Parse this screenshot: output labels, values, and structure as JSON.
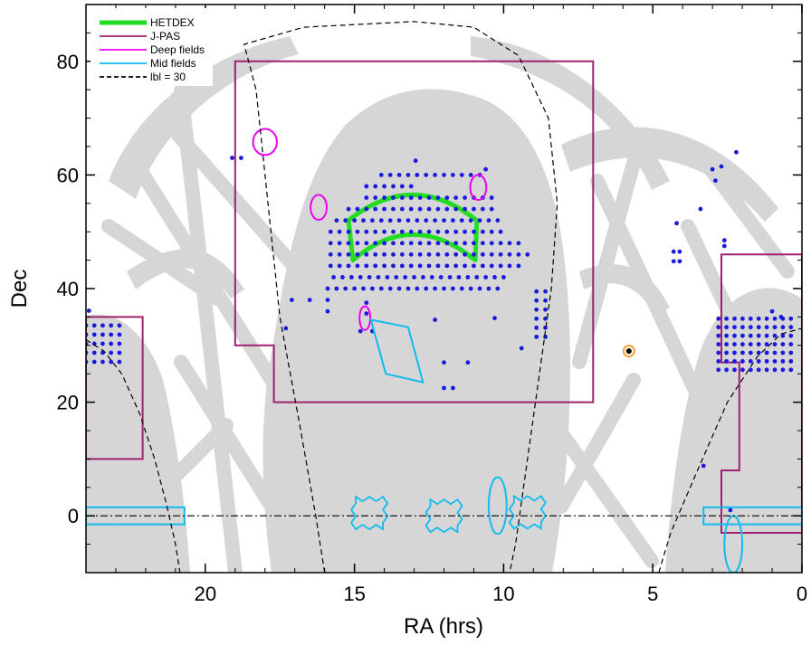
{
  "chart_data": {
    "type": "scatter",
    "xlabel": "RA (hrs)",
    "ylabel": "Dec",
    "xlim": [
      24,
      0
    ],
    "ylim": [
      -10,
      90
    ],
    "x_ticks": [
      20,
      15,
      10,
      5,
      0
    ],
    "y_ticks": [
      0,
      20,
      40,
      60,
      80
    ],
    "grid": false,
    "legend_position": "top-left",
    "legend": [
      {
        "label": "HETDEX",
        "color": "#22dd22",
        "style": "thick-solid"
      },
      {
        "label": "J-PAS",
        "color": "#a0206e",
        "style": "solid"
      },
      {
        "label": "Deep fields",
        "color": "#ee00ee",
        "style": "solid"
      },
      {
        "label": "Mid fields",
        "color": "#11bbee",
        "style": "solid"
      },
      {
        "label": "lbl = 30",
        "color": "#000000",
        "style": "dashed"
      }
    ],
    "colors": {
      "background_mask": "#d6d6d6",
      "hetdex": "#22dd22",
      "jpas": "#a0206e",
      "deep": "#ee00ee",
      "mid": "#11bbee",
      "points": "#1a1adc",
      "galactic": "#000000"
    },
    "jpas_regions": [
      [
        [
          19,
          80
        ],
        [
          7,
          80
        ],
        [
          7,
          20
        ],
        [
          17.7,
          20
        ],
        [
          17.7,
          30
        ],
        [
          19,
          30
        ]
      ],
      [
        [
          24,
          35
        ],
        [
          22.1,
          35
        ],
        [
          22.1,
          10
        ],
        [
          24,
          10
        ]
      ],
      [
        [
          0,
          46
        ],
        [
          2.7,
          46
        ],
        [
          2.7,
          27
        ],
        [
          2.1,
          27
        ],
        [
          2.1,
          8
        ],
        [
          2.7,
          8
        ],
        [
          2.7,
          -3
        ],
        [
          0,
          -3
        ]
      ]
    ],
    "hetdex_region": {
      "ra_min": 10.9,
      "ra_max": 15.2,
      "dec_min": 45,
      "dec_max": 52,
      "arc_top": 56.5,
      "arc_bottom": 49.5
    },
    "deep_fields": [
      {
        "ra": 18.0,
        "dec": 65.8,
        "rx": 0.4,
        "ry": 2.3
      },
      {
        "ra": 16.2,
        "dec": 54.3,
        "rx": 0.27,
        "ry": 2.2
      },
      {
        "ra": 10.85,
        "dec": 57.8,
        "rx": 0.27,
        "ry": 2.2
      },
      {
        "ra": 14.65,
        "dec": 34.8,
        "rx": 0.18,
        "ry": 2.1
      }
    ],
    "mid_fields_boxes": [
      [
        [
          24,
          1.5
        ],
        [
          20.7,
          1.5
        ],
        [
          20.7,
          -1.5
        ],
        [
          24,
          -1.5
        ]
      ],
      [
        [
          0,
          1.5
        ],
        [
          3.3,
          1.5
        ],
        [
          3.3,
          -1.5
        ],
        [
          0,
          -1.5
        ]
      ]
    ],
    "mid_fields_polygon": [
      [
        14.45,
        34.5
      ],
      [
        13.2,
        33.2
      ],
      [
        12.7,
        23.5
      ],
      [
        13.95,
        25.0
      ]
    ],
    "mid_fields_jagged": [
      {
        "ra": 14.5,
        "dec": 0.5
      },
      {
        "ra": 12.0,
        "dec": 0.0
      },
      {
        "ra": 9.2,
        "dec": 0.6
      }
    ],
    "mid_fields_ellipses": [
      {
        "ra": 10.2,
        "dec": 1.8,
        "rx": 0.3,
        "ry": 5.0
      },
      {
        "ra": 2.3,
        "dec": -5.0,
        "rx": 0.3,
        "ry": 5.0
      }
    ],
    "special_marker": {
      "ra": 5.8,
      "dec": 29.0,
      "color": "#f0a030"
    },
    "scatter_points": [],
    "galactic_curves": [
      [
        [
          24,
          31
        ],
        [
          23.4,
          29
        ],
        [
          22.8,
          25
        ],
        [
          22.2,
          18
        ],
        [
          21.7,
          10
        ],
        [
          21.3,
          2
        ],
        [
          21.0,
          -5
        ],
        [
          20.85,
          -10
        ]
      ],
      [
        [
          16.0,
          -10
        ],
        [
          16.3,
          0
        ],
        [
          16.8,
          15
        ],
        [
          17.5,
          35
        ],
        [
          18.0,
          60
        ],
        [
          18.3,
          75
        ],
        [
          18.7,
          83
        ],
        [
          16.7,
          86
        ],
        [
          13.0,
          87
        ],
        [
          11.0,
          86
        ],
        [
          9.5,
          81
        ],
        [
          8.5,
          70
        ],
        [
          8.2,
          55
        ],
        [
          8.4,
          40
        ],
        [
          8.8,
          25
        ],
        [
          9.2,
          10
        ],
        [
          9.6,
          -5
        ],
        [
          9.8,
          -10
        ]
      ],
      [
        [
          4.8,
          -10
        ],
        [
          4.4,
          -3
        ],
        [
          3.5,
          8
        ],
        [
          2.5,
          20
        ],
        [
          1.5,
          28
        ],
        [
          0.7,
          32
        ],
        [
          0,
          33
        ]
      ]
    ],
    "equator_dec": 0
  }
}
